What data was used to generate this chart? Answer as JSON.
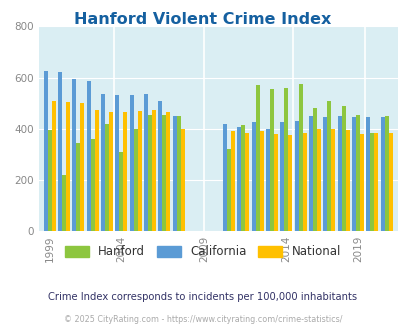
{
  "title": "Hanford Violent Crime Index",
  "title_color": "#1560a0",
  "subtitle": "Crime Index corresponds to incidents per 100,000 inhabitants",
  "footer": "© 2025 CityRating.com - https://www.cityrating.com/crime-statistics/",
  "years": [
    1999,
    2000,
    2001,
    2002,
    2003,
    2004,
    2005,
    2006,
    2007,
    2008,
    2010,
    2011,
    2012,
    2013,
    2014,
    2015,
    2016,
    2017,
    2018,
    2019,
    2020,
    2021
  ],
  "hanford": [
    395,
    220,
    345,
    360,
    420,
    310,
    400,
    455,
    455,
    450,
    320,
    415,
    570,
    555,
    560,
    575,
    480,
    510,
    490,
    455,
    385,
    450
  ],
  "california": [
    625,
    620,
    595,
    585,
    535,
    530,
    530,
    535,
    510,
    450,
    420,
    405,
    425,
    400,
    425,
    430,
    450,
    445,
    450,
    445,
    445,
    445
  ],
  "national": [
    510,
    505,
    500,
    475,
    465,
    465,
    470,
    475,
    465,
    400,
    390,
    385,
    390,
    380,
    375,
    385,
    400,
    400,
    395,
    380,
    385,
    385
  ],
  "hanford_color": "#8dc63f",
  "california_color": "#5b9bd5",
  "national_color": "#ffc000",
  "bg_color": "#daeef3",
  "ylim": [
    0,
    800
  ],
  "yticks": [
    0,
    200,
    400,
    600,
    800
  ],
  "bar_width": 0.28,
  "legend_labels": [
    "Hanford",
    "California",
    "National"
  ],
  "subtitle_color": "#333366",
  "footer_color": "#aaaaaa"
}
